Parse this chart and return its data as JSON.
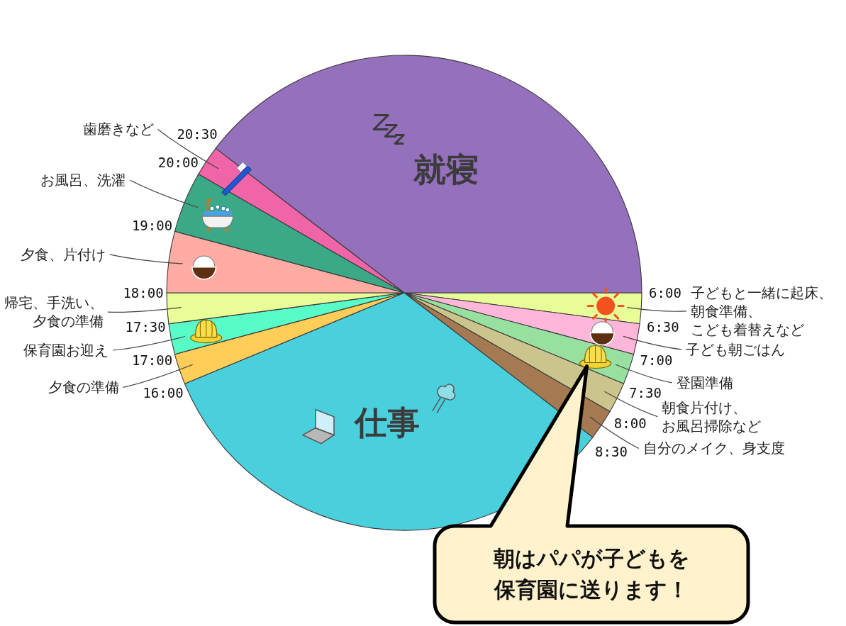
{
  "chart_data": {
    "type": "pie",
    "categories": [
      "子どもと一緒に起床、朝食準備、こども着替えなど",
      "子ども朝ごはん",
      "登園準備",
      "朝食片付け、お風呂掃除など",
      "自分のメイク、身支度",
      "仕事",
      "夕食の準備",
      "保育園お迎え",
      "帰宅、手洗い、夕食の準備",
      "夕食、片付け",
      "お風呂、洗濯",
      "歯磨きなど",
      "就寝"
    ],
    "values": [
      2.083,
      2.083,
      2.083,
      2.083,
      2.083,
      33.333,
      2.083,
      2.083,
      2.083,
      4.167,
      4.167,
      2.083,
      39.583
    ],
    "colors": [
      "#e8fd98",
      "#ffb6d9",
      "#98e0a0",
      "#cbc58d",
      "#a57a52",
      "#4acfdc",
      "#ffcd58",
      "#58fcc8",
      "#e8fd98",
      "#ffaca4",
      "#3ba887",
      "#f064a8",
      "#9570bd"
    ],
    "annotations": [
      "6:00",
      "6:30",
      "7:00",
      "7:30",
      "8:00",
      "8:30",
      "16:00",
      "17:00",
      "17:30",
      "18:00",
      "19:00",
      "20:00",
      "20:30",
      "朝はパパが子どもを保育園に送ります！"
    ]
  }
}
